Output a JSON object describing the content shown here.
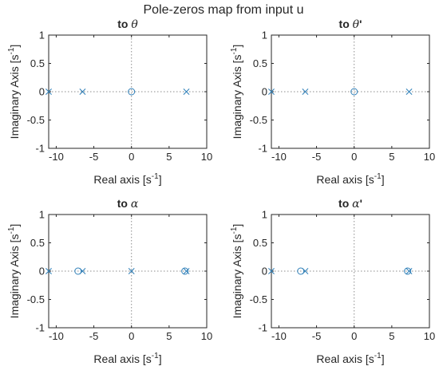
{
  "title": "Pole-zeros map from input u",
  "marker_color": "#2e7fb8",
  "chart_data": [
    {
      "type": "scatter",
      "title_prefix": "to ",
      "title_symbol": "θ",
      "title_suffix": "",
      "xlabel_main": "Real axis [s",
      "xlabel_sup": "-1",
      "xlabel_end": "]",
      "ylabel_main": "Imaginary Axis [s",
      "ylabel_sup": "-1",
      "ylabel_end": "]",
      "xlim": [
        -11,
        10
      ],
      "ylim": [
        -1,
        1
      ],
      "xticks": [
        -10,
        -5,
        0,
        5,
        10
      ],
      "yticks": [
        -1,
        -0.5,
        0,
        0.5,
        1
      ],
      "grid": false,
      "series": [
        {
          "marker": "x",
          "points": [
            [
              -11,
              0
            ],
            [
              -6.5,
              0
            ],
            [
              7.3,
              0
            ]
          ]
        },
        {
          "marker": "o",
          "points": [
            [
              0,
              0
            ]
          ]
        }
      ]
    },
    {
      "type": "scatter",
      "title_prefix": "to ",
      "title_symbol": "θ",
      "title_suffix": "'",
      "xlabel_main": "Real axis [s",
      "xlabel_sup": "-1",
      "xlabel_end": "]",
      "ylabel_main": "Imaginary Axis [s",
      "ylabel_sup": "-1",
      "ylabel_end": "]",
      "xlim": [
        -11,
        10
      ],
      "ylim": [
        -1,
        1
      ],
      "xticks": [
        -10,
        -5,
        0,
        5,
        10
      ],
      "yticks": [
        -1,
        -0.5,
        0,
        0.5,
        1
      ],
      "grid": false,
      "series": [
        {
          "marker": "x",
          "points": [
            [
              -11,
              0
            ],
            [
              -6.5,
              0
            ],
            [
              7.3,
              0
            ]
          ]
        },
        {
          "marker": "o",
          "points": [
            [
              0,
              0
            ]
          ]
        }
      ]
    },
    {
      "type": "scatter",
      "title_prefix": "to ",
      "title_symbol": "α",
      "title_suffix": "",
      "xlabel_main": "Real axis [s",
      "xlabel_sup": "-1",
      "xlabel_end": "]",
      "ylabel_main": "Imaginary Axis [s",
      "ylabel_sup": "-1",
      "ylabel_end": "]",
      "xlim": [
        -11,
        10
      ],
      "ylim": [
        -1,
        1
      ],
      "xticks": [
        -10,
        -5,
        0,
        5,
        10
      ],
      "yticks": [
        -1,
        -0.5,
        0,
        0.5,
        1
      ],
      "grid": false,
      "series": [
        {
          "marker": "x",
          "points": [
            [
              -11,
              0
            ],
            [
              -6.5,
              0
            ],
            [
              0,
              0
            ],
            [
              7.3,
              0
            ]
          ]
        },
        {
          "marker": "o",
          "points": [
            [
              -7.1,
              0
            ],
            [
              7.1,
              0
            ]
          ]
        }
      ]
    },
    {
      "type": "scatter",
      "title_prefix": "to ",
      "title_symbol": "α",
      "title_suffix": "'",
      "xlabel_main": "Real axis [s",
      "xlabel_sup": "-1",
      "xlabel_end": "]",
      "ylabel_main": "Imaginary Axis [s",
      "ylabel_sup": "-1",
      "ylabel_end": "]",
      "xlim": [
        -11,
        10
      ],
      "ylim": [
        -1,
        1
      ],
      "xticks": [
        -10,
        -5,
        0,
        5,
        10
      ],
      "yticks": [
        -1,
        -0.5,
        0,
        0.5,
        1
      ],
      "grid": false,
      "series": [
        {
          "marker": "x",
          "points": [
            [
              -11,
              0
            ],
            [
              -6.5,
              0
            ],
            [
              7.3,
              0
            ]
          ]
        },
        {
          "marker": "o",
          "points": [
            [
              -7.1,
              0
            ],
            [
              7.1,
              0
            ]
          ]
        }
      ]
    }
  ]
}
